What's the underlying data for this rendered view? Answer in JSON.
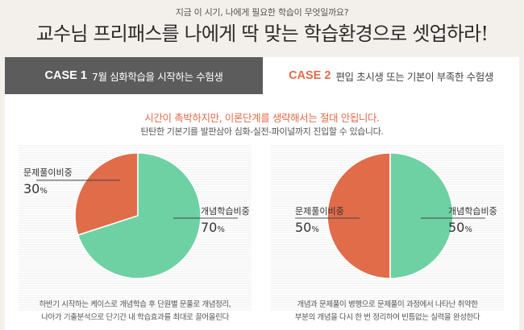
{
  "header": {
    "subtitle": "지금 이 시기, 나에게 필요한 학습이 무엇일까요?",
    "title": "교수님 프리패스를 나에게 딱 맞는 학습환경으로 셋업하라!"
  },
  "tabs": [
    {
      "case": "CASE 1",
      "label": "7월 심화학습을 시작하는 수험생",
      "active": true
    },
    {
      "case": "CASE 2",
      "label": "편입 초시생 또는 기본이 부족한 수험생",
      "active": false
    }
  ],
  "panel": {
    "headline": "시간이 촉박하지만, 이론단계를 생략해서는 절대 안됩니다.",
    "description": "탄탄한 기본기를 발판삼아 심화-실전-파이널까지 진입할 수 있습니다."
  },
  "colors": {
    "green": "#6ed1a3",
    "orange": "#e06c4a",
    "dark_tab": "#5c5c5c"
  },
  "chart_data": [
    {
      "type": "pie",
      "slices": [
        {
          "label": "문제풀이비중",
          "value": 30,
          "display": "30",
          "unit": "%",
          "color": "#e06c4a"
        },
        {
          "label": "개념학습비중",
          "value": 70,
          "display": "70",
          "unit": "%",
          "color": "#6ed1a3"
        }
      ],
      "note": [
        "하반기 시작하는 케이스로 개념학습 후 단원별 문풀로 개념정리,",
        "나아가 기출분석으로 단기간 내 학습효과를 최대로 끌어올린다"
      ]
    },
    {
      "type": "pie",
      "slices": [
        {
          "label": "문제풀이비중",
          "value": 50,
          "display": "50",
          "unit": "%",
          "color": "#e06c4a"
        },
        {
          "label": "개념학습비중",
          "value": 50,
          "display": "50",
          "unit": "%",
          "color": "#6ed1a3"
        }
      ],
      "note": [
        "개념과 문제풀이 병행으로 문제풀이 과정에서 나타난 취약한",
        "부분의 개념을 다시 한 번 정리하여 빈틈없는 실력을 완성한다"
      ]
    }
  ]
}
